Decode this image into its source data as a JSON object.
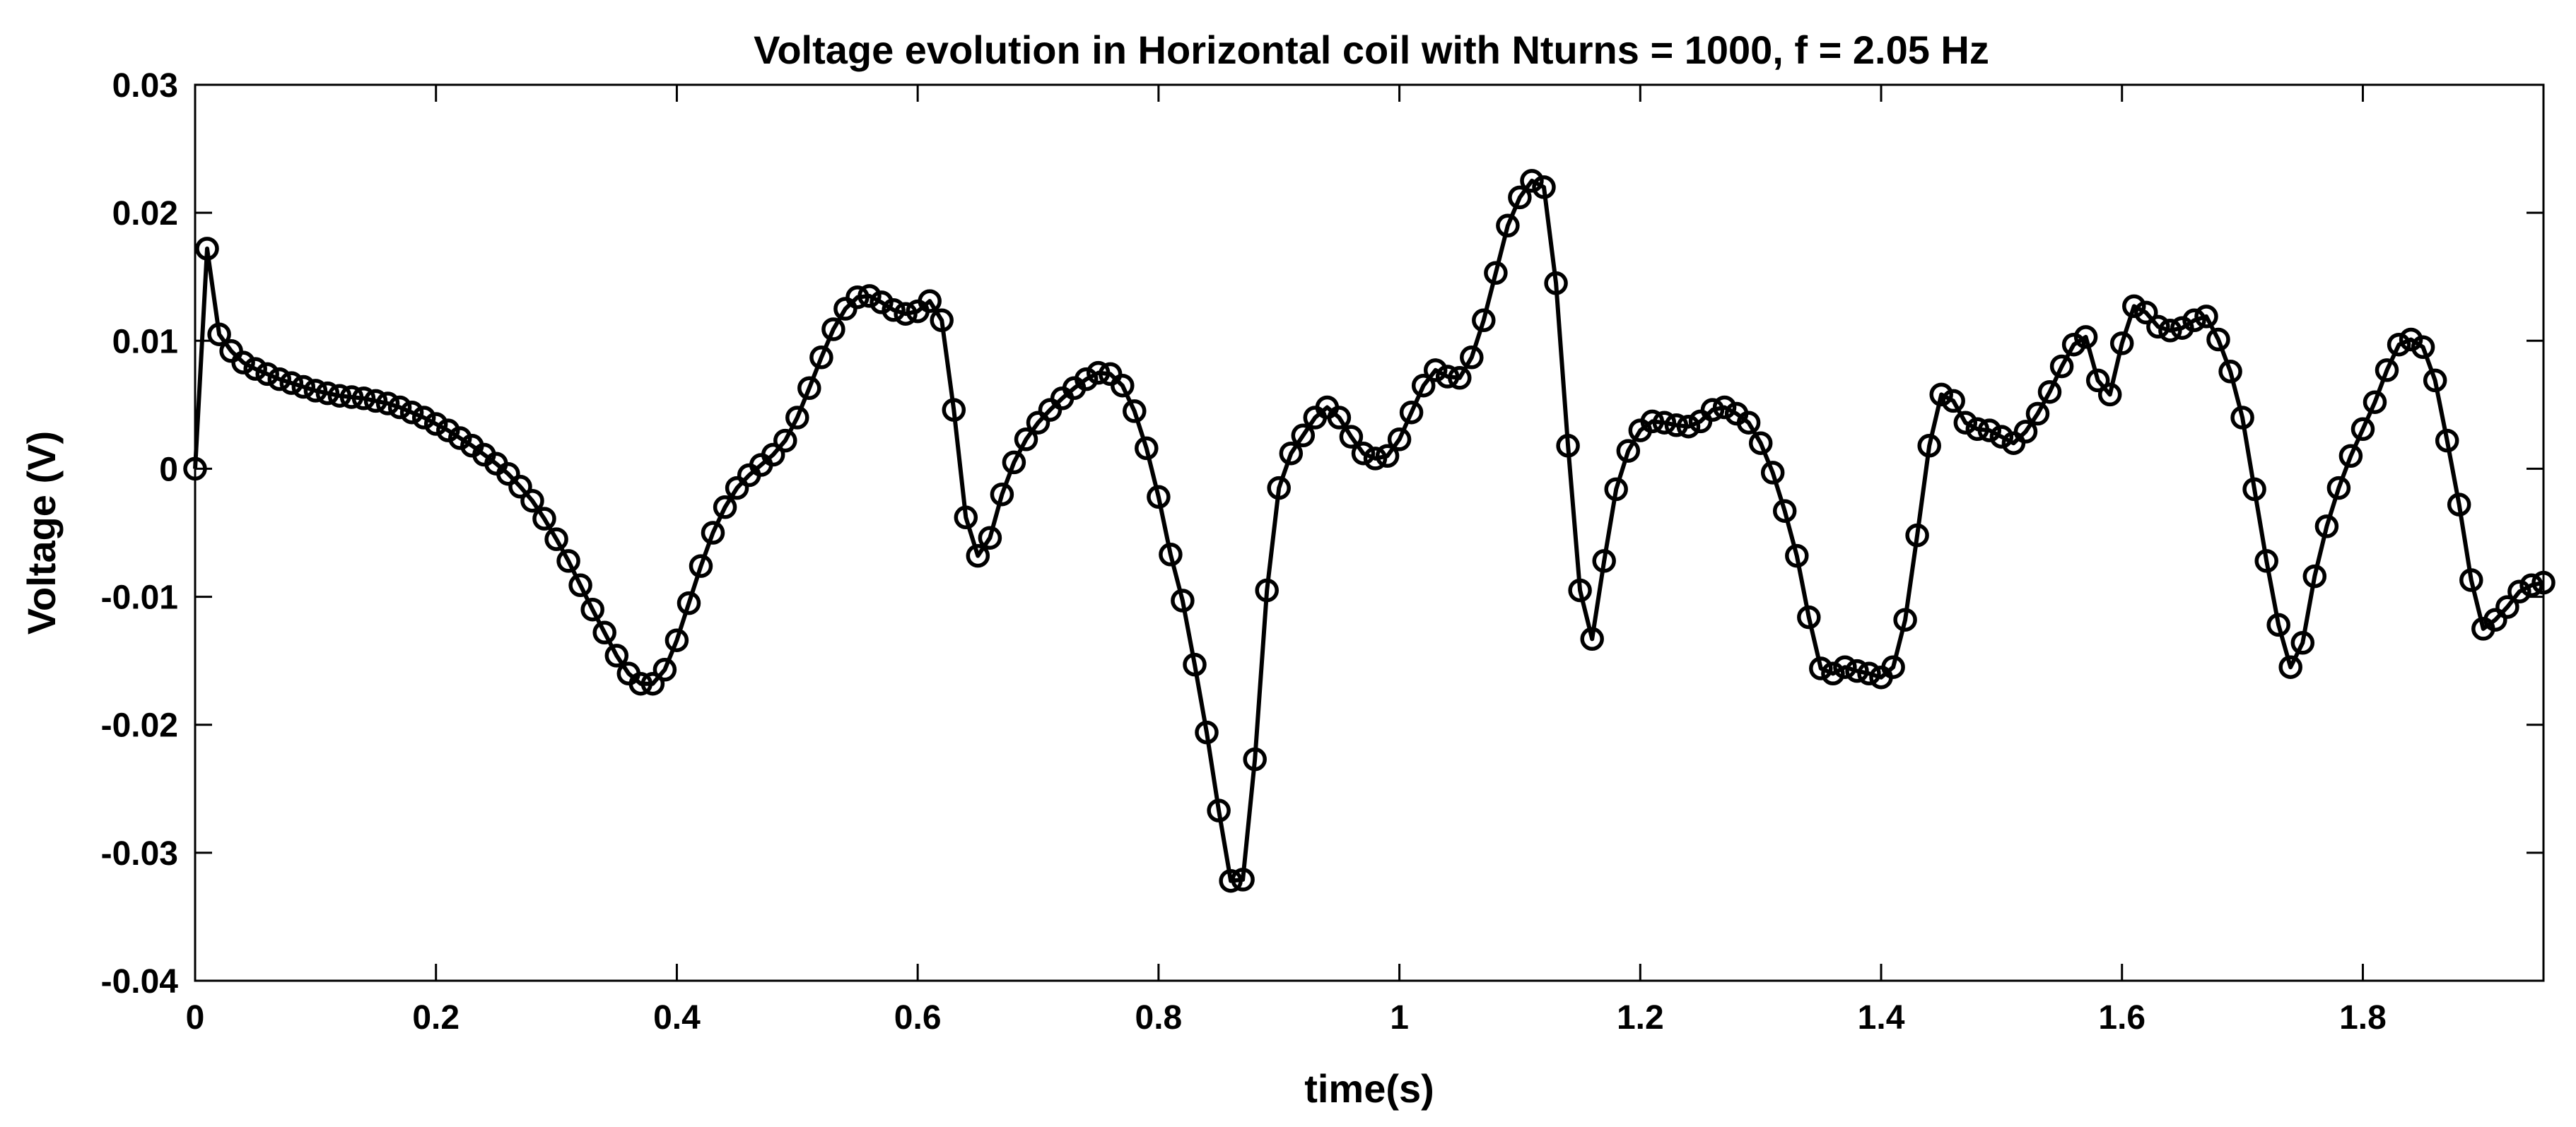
{
  "chart_data": {
    "type": "line",
    "title": "Voltage evolution in Horizontal coil with Nturns = 1000, f = 2.05 Hz",
    "xlabel": "time(s)",
    "ylabel": "Voltage (V)",
    "xlim": [
      0,
      1.95
    ],
    "ylim": [
      -0.04,
      0.03
    ],
    "xticks": [
      0,
      0.2,
      0.4,
      0.6,
      0.8,
      1,
      1.2,
      1.4,
      1.6,
      1.8
    ],
    "xtick_labels": [
      "0",
      "0.2",
      "0.4",
      "0.6",
      "0.8",
      "1",
      "1.2",
      "1.4",
      "1.6",
      "1.8"
    ],
    "yticks": [
      0.03,
      0.02,
      0.01,
      0,
      -0.01,
      -0.02,
      -0.03,
      -0.04
    ],
    "ytick_labels": [
      "0.03",
      "0.02",
      "0.01",
      "0",
      "-0.01",
      "-0.02",
      "-0.03",
      "-0.04"
    ],
    "grid": false,
    "marker": "circle",
    "line_color": "#000000",
    "series": [
      {
        "name": "Voltage",
        "x": [
          0,
          0.01,
          0.02,
          0.03,
          0.04,
          0.05,
          0.06,
          0.07,
          0.08,
          0.09,
          0.1,
          0.11,
          0.12,
          0.13,
          0.14,
          0.15,
          0.16,
          0.17,
          0.18,
          0.19,
          0.2,
          0.21,
          0.22,
          0.23,
          0.24,
          0.25,
          0.26,
          0.27,
          0.28,
          0.29,
          0.3,
          0.31,
          0.32,
          0.33,
          0.34,
          0.35,
          0.36,
          0.37,
          0.38,
          0.39,
          0.4,
          0.41,
          0.42,
          0.43,
          0.44,
          0.45,
          0.46,
          0.47,
          0.48,
          0.49,
          0.5,
          0.51,
          0.52,
          0.53,
          0.54,
          0.55,
          0.56,
          0.57,
          0.58,
          0.59,
          0.6,
          0.61,
          0.62,
          0.63,
          0.64,
          0.65,
          0.66,
          0.67,
          0.68,
          0.69,
          0.7,
          0.71,
          0.72,
          0.73,
          0.74,
          0.75,
          0.76,
          0.77,
          0.78,
          0.79,
          0.8,
          0.81,
          0.82,
          0.83,
          0.84,
          0.85,
          0.86,
          0.87,
          0.88,
          0.89,
          0.9,
          0.91,
          0.92,
          0.93,
          0.94,
          0.95,
          0.96,
          0.97,
          0.98,
          0.99,
          1.0,
          1.01,
          1.02,
          1.03,
          1.04,
          1.05,
          1.06,
          1.07,
          1.08,
          1.09,
          1.1,
          1.11,
          1.12,
          1.13,
          1.14,
          1.15,
          1.16,
          1.17,
          1.18,
          1.19,
          1.2,
          1.21,
          1.22,
          1.23,
          1.24,
          1.25,
          1.26,
          1.27,
          1.28,
          1.29,
          1.3,
          1.31,
          1.32,
          1.33,
          1.34,
          1.35,
          1.36,
          1.37,
          1.38,
          1.39,
          1.4,
          1.41,
          1.42,
          1.43,
          1.44,
          1.45,
          1.46,
          1.47,
          1.48,
          1.49,
          1.5,
          1.51,
          1.52,
          1.53,
          1.54,
          1.55,
          1.56,
          1.57,
          1.58,
          1.59,
          1.6,
          1.61,
          1.62,
          1.63,
          1.64,
          1.65,
          1.66,
          1.67,
          1.68,
          1.69,
          1.7,
          1.71,
          1.72,
          1.73,
          1.74,
          1.75,
          1.76,
          1.77,
          1.78,
          1.79,
          1.8,
          1.81,
          1.82,
          1.83,
          1.84,
          1.85,
          1.86,
          1.87,
          1.88,
          1.89,
          1.9,
          1.91,
          1.92,
          1.93,
          1.94,
          1.95
        ],
        "y": [
          0,
          0.0172,
          0.0105,
          0.0092,
          0.0083,
          0.0078,
          0.0074,
          0.007,
          0.0067,
          0.0064,
          0.0061,
          0.0059,
          0.0057,
          0.0056,
          0.0055,
          0.0053,
          0.0051,
          0.0048,
          0.0044,
          0.004,
          0.0035,
          0.003,
          0.0024,
          0.0018,
          0.0011,
          0.0004,
          -0.0004,
          -0.0014,
          -0.0025,
          -0.0039,
          -0.0055,
          -0.0072,
          -0.0091,
          -0.011,
          -0.0128,
          -0.0146,
          -0.016,
          -0.0168,
          -0.0168,
          -0.0157,
          -0.0134,
          -0.0105,
          -0.0076,
          -0.005,
          -0.003,
          -0.0015,
          -0.0005,
          0.0003,
          0.0011,
          0.0022,
          0.004,
          0.0063,
          0.0087,
          0.0109,
          0.0125,
          0.0134,
          0.0135,
          0.013,
          0.0124,
          0.0121,
          0.0123,
          0.0131,
          0.0116,
          0.0046,
          -0.0038,
          -0.0068,
          -0.0054,
          -0.002,
          0.0005,
          0.0023,
          0.0036,
          0.0046,
          0.0055,
          0.0063,
          0.007,
          0.0075,
          0.0074,
          0.0065,
          0.0045,
          0.0016,
          -0.0022,
          -0.0067,
          -0.0103,
          -0.0153,
          -0.0206,
          -0.0267,
          -0.0322,
          -0.0321,
          -0.0227,
          -0.0095,
          -0.0015,
          0.0012,
          0.0026,
          0.004,
          0.0048,
          0.004,
          0.0025,
          0.0012,
          0.0008,
          0.001,
          0.0023,
          0.0044,
          0.0065,
          0.0077,
          0.0072,
          0.0071,
          0.0087,
          0.0116,
          0.0153,
          0.019,
          0.0212,
          0.0225,
          0.022,
          0.0145,
          0.0018,
          -0.0095,
          -0.0133,
          -0.0072,
          -0.0016,
          0.0014,
          0.003,
          0.0037,
          0.0036,
          0.0034,
          0.0033,
          0.0037,
          0.0046,
          0.0048,
          0.0043,
          0.0036,
          0.002,
          -0.0003,
          -0.0033,
          -0.0068,
          -0.0116,
          -0.0156,
          -0.016,
          -0.0155,
          -0.0158,
          -0.016,
          -0.0163,
          -0.0155,
          -0.0118,
          -0.0052,
          0.0018,
          0.0058,
          0.0053,
          0.0036,
          0.0031,
          0.003,
          0.0025,
          0.002,
          0.0029,
          0.0043,
          0.006,
          0.008,
          0.0097,
          0.0103,
          0.0069,
          0.0058,
          0.0098,
          0.0127,
          0.0122,
          0.0111,
          0.0108,
          0.011,
          0.0116,
          0.0119,
          0.0101,
          0.0076,
          0.004,
          -0.0016,
          -0.0072,
          -0.0122,
          -0.0155,
          -0.0136,
          -0.0084,
          -0.0045,
          -0.0015,
          0.001,
          0.0031,
          0.0052,
          0.0077,
          0.0097,
          0.0101,
          0.0095,
          0.0069,
          0.0022,
          -0.0028,
          -0.0087,
          -0.0125,
          -0.0118,
          -0.0108,
          -0.0096,
          -0.0091,
          -0.0089
        ]
      }
    ]
  }
}
